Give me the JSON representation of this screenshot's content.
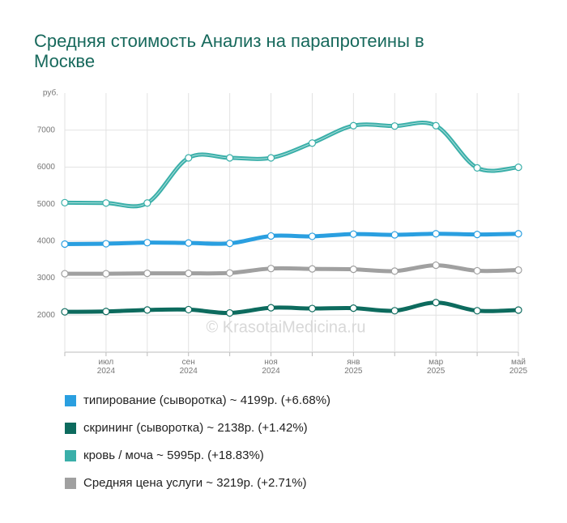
{
  "chart_data": {
    "type": "line",
    "title": "Средняя стоимость Анализ на парапротеины в Москве",
    "y_label": "руб.",
    "watermark": "© KrasotaiMedicina.ru",
    "categories": [
      null,
      "июл 2024",
      null,
      "сен 2024",
      null,
      "ноя 2024",
      null,
      "янв 2025",
      null,
      "мар 2025",
      null,
      "май 2025"
    ],
    "ylim": [
      1000,
      8000
    ],
    "yticks": [
      2000,
      3000,
      4000,
      5000,
      6000,
      7000
    ],
    "grid": true,
    "series": [
      {
        "name": "типирование (сыворотка) ~ 4199р. (+6.68%)",
        "color": "#2a9fe0",
        "values": [
          3920,
          3930,
          3960,
          3950,
          3940,
          4140,
          4130,
          4190,
          4170,
          4200,
          4180,
          4199
        ]
      },
      {
        "name": "скрининг (сыворотка) ~ 2138р. (+1.42%)",
        "color": "#0d6b5e",
        "values": [
          2090,
          2100,
          2140,
          2150,
          2060,
          2200,
          2180,
          2190,
          2120,
          2340,
          2120,
          2138
        ]
      },
      {
        "name": "кровь / моча ~ 5995р. (+18.83%)",
        "color": "#3aafa9",
        "values": [
          5040,
          5030,
          5030,
          6250,
          6250,
          6250,
          6650,
          7120,
          7110,
          7120,
          5980,
          5995
        ]
      },
      {
        "name": "Средняя цена услуги ~ 3219р. (+2.71%)",
        "color": "#a0a0a0",
        "values": [
          3120,
          3120,
          3130,
          3130,
          3140,
          3260,
          3250,
          3240,
          3190,
          3350,
          3200,
          3219
        ]
      }
    ]
  }
}
